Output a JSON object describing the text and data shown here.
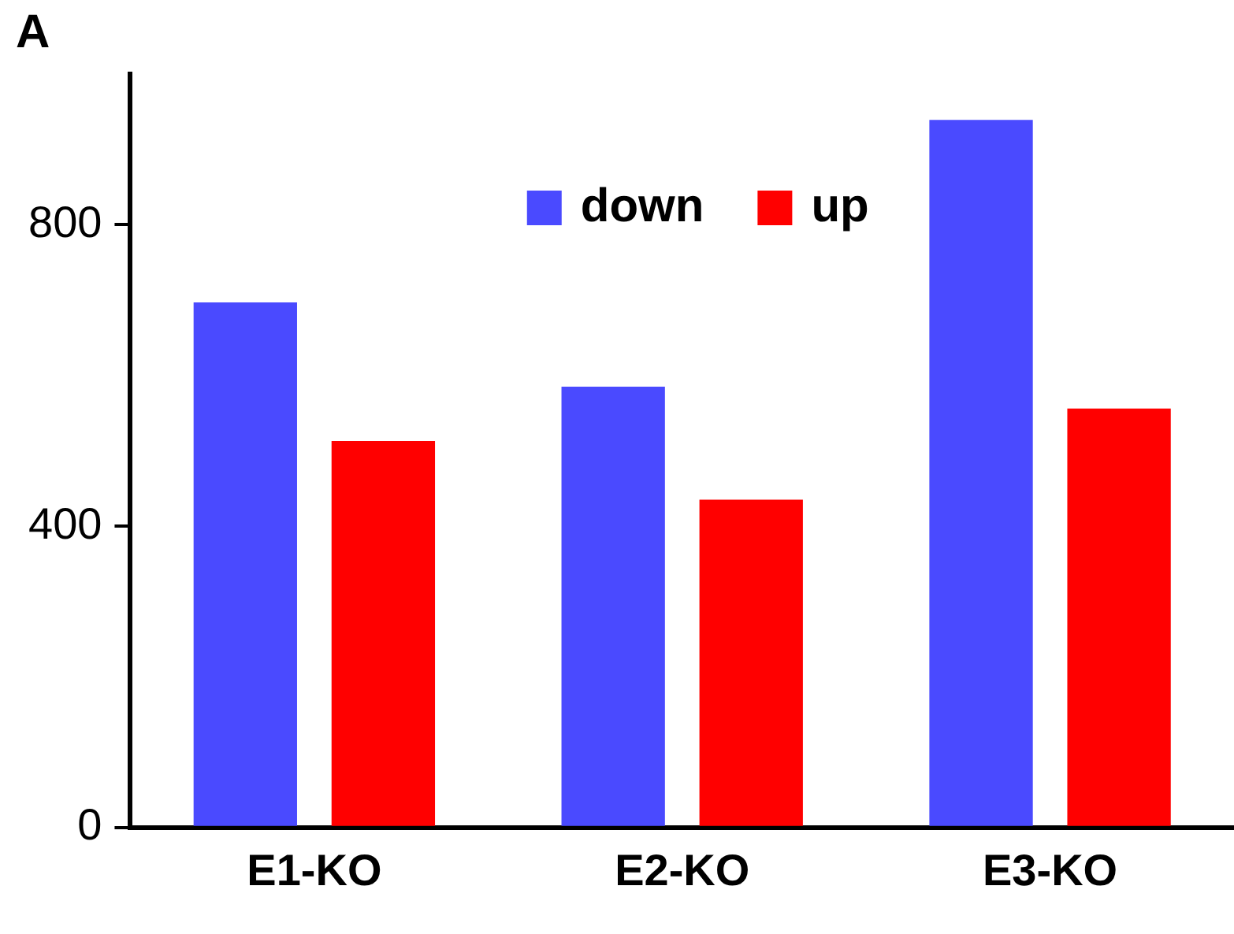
{
  "chart_data": {
    "type": "bar",
    "title": "A",
    "categories": [
      "E1-KO",
      "E2-KO",
      "E3-KO"
    ],
    "series": [
      {
        "name": "down",
        "color": "#4a4aff",
        "values": [
          697,
          585,
          939
        ]
      },
      {
        "name": "up",
        "color": "#ff0000",
        "values": [
          513,
          435,
          556
        ]
      }
    ],
    "ylim": [
      0,
      1000
    ],
    "yticks": [
      0,
      400,
      800
    ],
    "grid": false,
    "legend": "top"
  }
}
